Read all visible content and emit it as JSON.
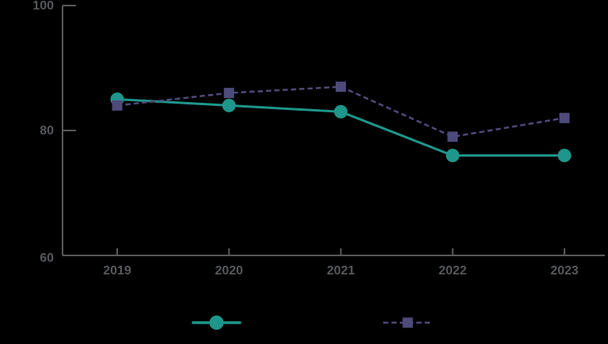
{
  "page": {
    "background_color": "#000000"
  },
  "chart_data": {
    "type": "line",
    "title": "",
    "categories": [
      "2019",
      "2020",
      "2021",
      "2022",
      "2023"
    ],
    "series": [
      {
        "id": "teal_series",
        "legend_label": "",
        "values": [
          85,
          84,
          83,
          76,
          76
        ],
        "color": "#1e968c",
        "line_style": "solid",
        "marker": "circle"
      },
      {
        "id": "purple_series",
        "legend_label": "",
        "values": [
          84,
          86,
          87,
          79,
          82
        ],
        "color": "#4e4a79",
        "line_style": "dashed",
        "marker": "square"
      }
    ],
    "xlabel": "",
    "ylabel": "",
    "ylim": [
      60,
      100
    ],
    "yticks": [
      60,
      80,
      100
    ],
    "ytick_labels": [
      "60",
      "80",
      "100"
    ],
    "grid": false,
    "legend_position": "bottom",
    "axis_color": "#58595b",
    "tick_label_color": "#55575a"
  }
}
